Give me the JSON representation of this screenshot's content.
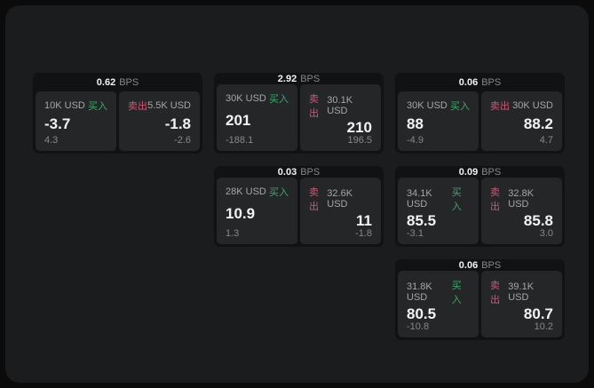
{
  "app": {
    "name": "quote-board"
  },
  "colors": {
    "background": "#0b0b0b",
    "panel": "#1b1c1d",
    "card": "#111213",
    "tile": "#252628",
    "text_primary": "#f2f3f4",
    "text_secondary": "#a5a6a8",
    "text_muted": "#87888c",
    "buy_green": "#3fa968",
    "sell_pink": "#cf5875"
  },
  "cards": [
    {
      "bps_value": "0.62",
      "bps_unit": "BPS",
      "grid": {
        "row": 1,
        "col": 1
      },
      "buy": {
        "size": "10K USD",
        "action": "买入",
        "price": "-3.7",
        "delta": "4.3"
      },
      "sell": {
        "action": "卖出",
        "size": "5.5K USD",
        "price": "-1.8",
        "delta": "-2.6"
      }
    },
    {
      "bps_value": "2.92",
      "bps_unit": "BPS",
      "grid": {
        "row": 1,
        "col": 2
      },
      "buy": {
        "size": "30K USD",
        "action": "买入",
        "price": "201",
        "delta": "-188.1"
      },
      "sell": {
        "action": "卖出",
        "size": "30.1K USD",
        "price": "210",
        "delta": "196.5"
      }
    },
    {
      "bps_value": "0.06",
      "bps_unit": "BPS",
      "grid": {
        "row": 1,
        "col": 3
      },
      "buy": {
        "size": "30K USD",
        "action": "买入",
        "price": "88",
        "delta": "-4.9"
      },
      "sell": {
        "action": "卖出",
        "size": "30K USD",
        "price": "88.2",
        "delta": "4.7"
      }
    },
    {
      "bps_value": "0.03",
      "bps_unit": "BPS",
      "grid": {
        "row": 2,
        "col": 2
      },
      "buy": {
        "size": "28K USD",
        "action": "买入",
        "price": "10.9",
        "delta": "1.3"
      },
      "sell": {
        "action": "卖出",
        "size": "32.6K USD",
        "price": "11",
        "delta": "-1.8"
      }
    },
    {
      "bps_value": "0.09",
      "bps_unit": "BPS",
      "grid": {
        "row": 2,
        "col": 3
      },
      "buy": {
        "size": "34.1K USD",
        "action": "买入",
        "price": "85.5",
        "delta": "-3.1"
      },
      "sell": {
        "action": "卖出",
        "size": "32.8K USD",
        "price": "85.8",
        "delta": "3.0"
      }
    },
    {
      "bps_value": "0.06",
      "bps_unit": "BPS",
      "grid": {
        "row": 3,
        "col": 3
      },
      "buy": {
        "size": "31.8K USD",
        "action": "买入",
        "price": "80.5",
        "delta": "-10.8"
      },
      "sell": {
        "action": "卖出",
        "size": "39.1K USD",
        "price": "80.7",
        "delta": "10.2"
      }
    }
  ]
}
